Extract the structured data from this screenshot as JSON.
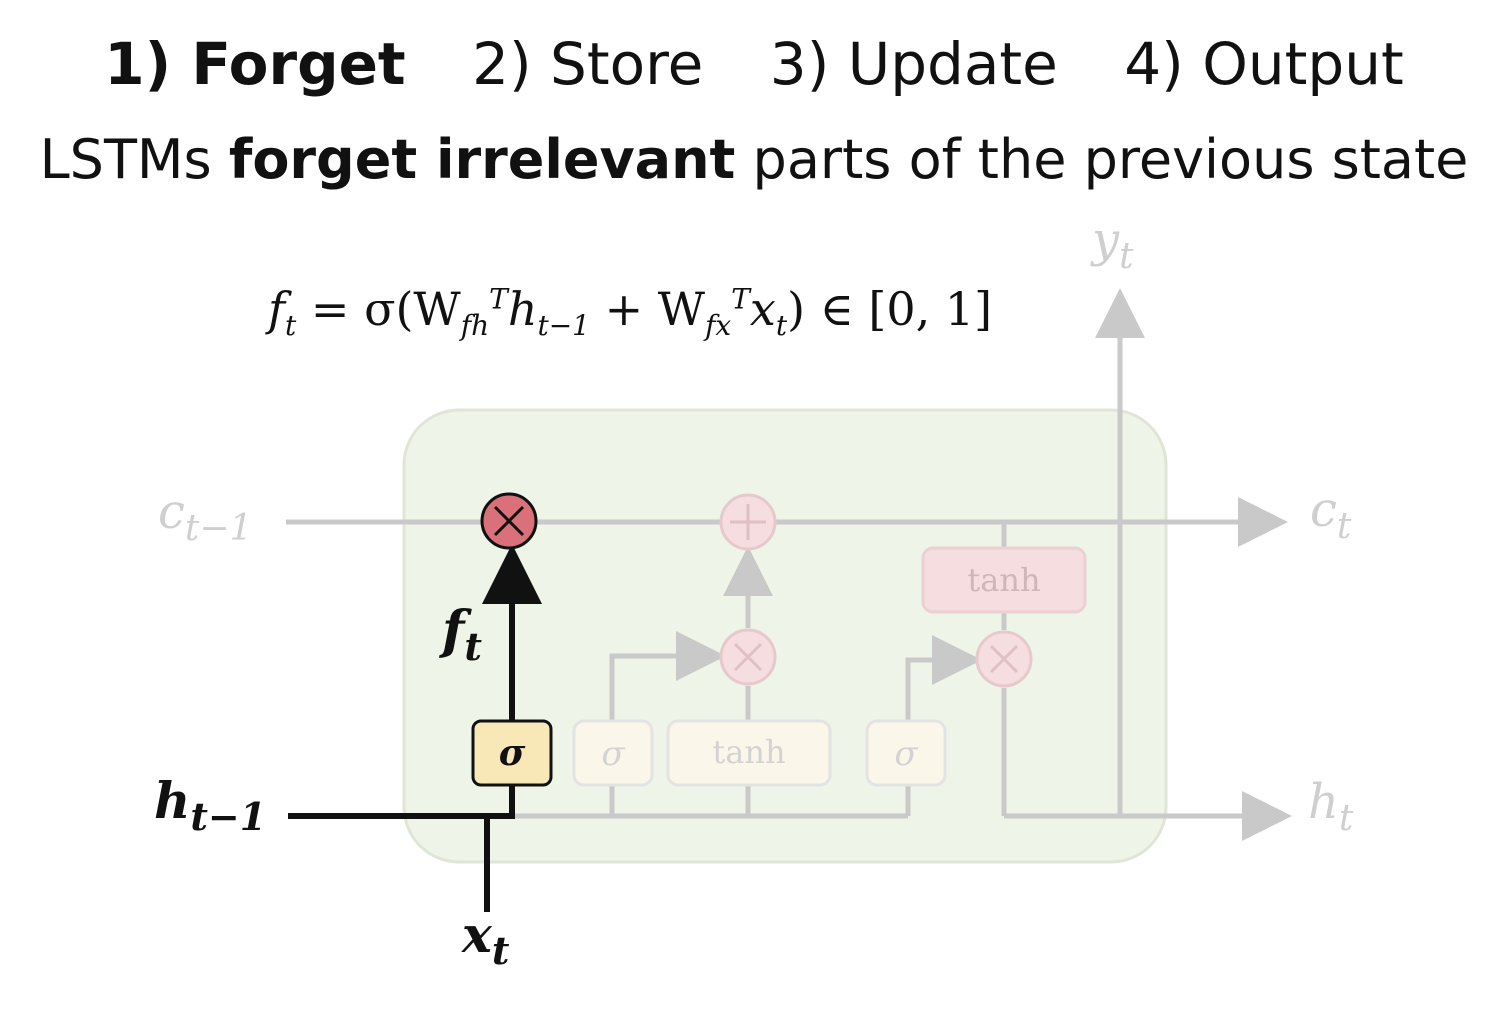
{
  "steps": [
    {
      "label": "1) Forget",
      "active": true
    },
    {
      "label": "2) Store",
      "active": false
    },
    {
      "label": "3) Update",
      "active": false
    },
    {
      "label": "4) Output",
      "active": false
    }
  ],
  "subtitle": {
    "prefix": "LSTMs ",
    "bold": "forget irrelevant",
    "suffix": " parts of the previous state"
  },
  "formula": {
    "lhs": "f",
    "lhs_sub": "t",
    "eq": " = σ(W",
    "w1_sub": "fh",
    "w1_sup": "T",
    "h": "h",
    "h_sub": "t−1",
    "plus": " + W",
    "w2_sub": "fx",
    "w2_sup": "T",
    "x": "x",
    "x_sub": "t",
    "tail": ") ∈ [0, 1]"
  },
  "diagram": {
    "labels": {
      "c_prev": "c",
      "c_prev_sub": "t−1",
      "c_next": "c",
      "c_next_sub": "t",
      "h_prev": "h",
      "h_prev_sub": "t−1",
      "h_next": "h",
      "h_next_sub": "t",
      "x_in": "x",
      "x_in_sub": "t",
      "y_out": "y",
      "y_out_sub": "t",
      "f_gate": "f",
      "f_gate_sub": "t"
    },
    "gates": {
      "forget_sigma": "σ",
      "input_sigma": "σ",
      "tanh_candidate": "tanh",
      "output_sigma": "σ",
      "tanh_cell": "tanh"
    },
    "colors": {
      "active": "#111111",
      "faded": "#c9c9c9",
      "cell_bg": "#eef4e8",
      "mult_active": "#d9707a",
      "sigma_active_bg": "#f8e8b8"
    }
  }
}
